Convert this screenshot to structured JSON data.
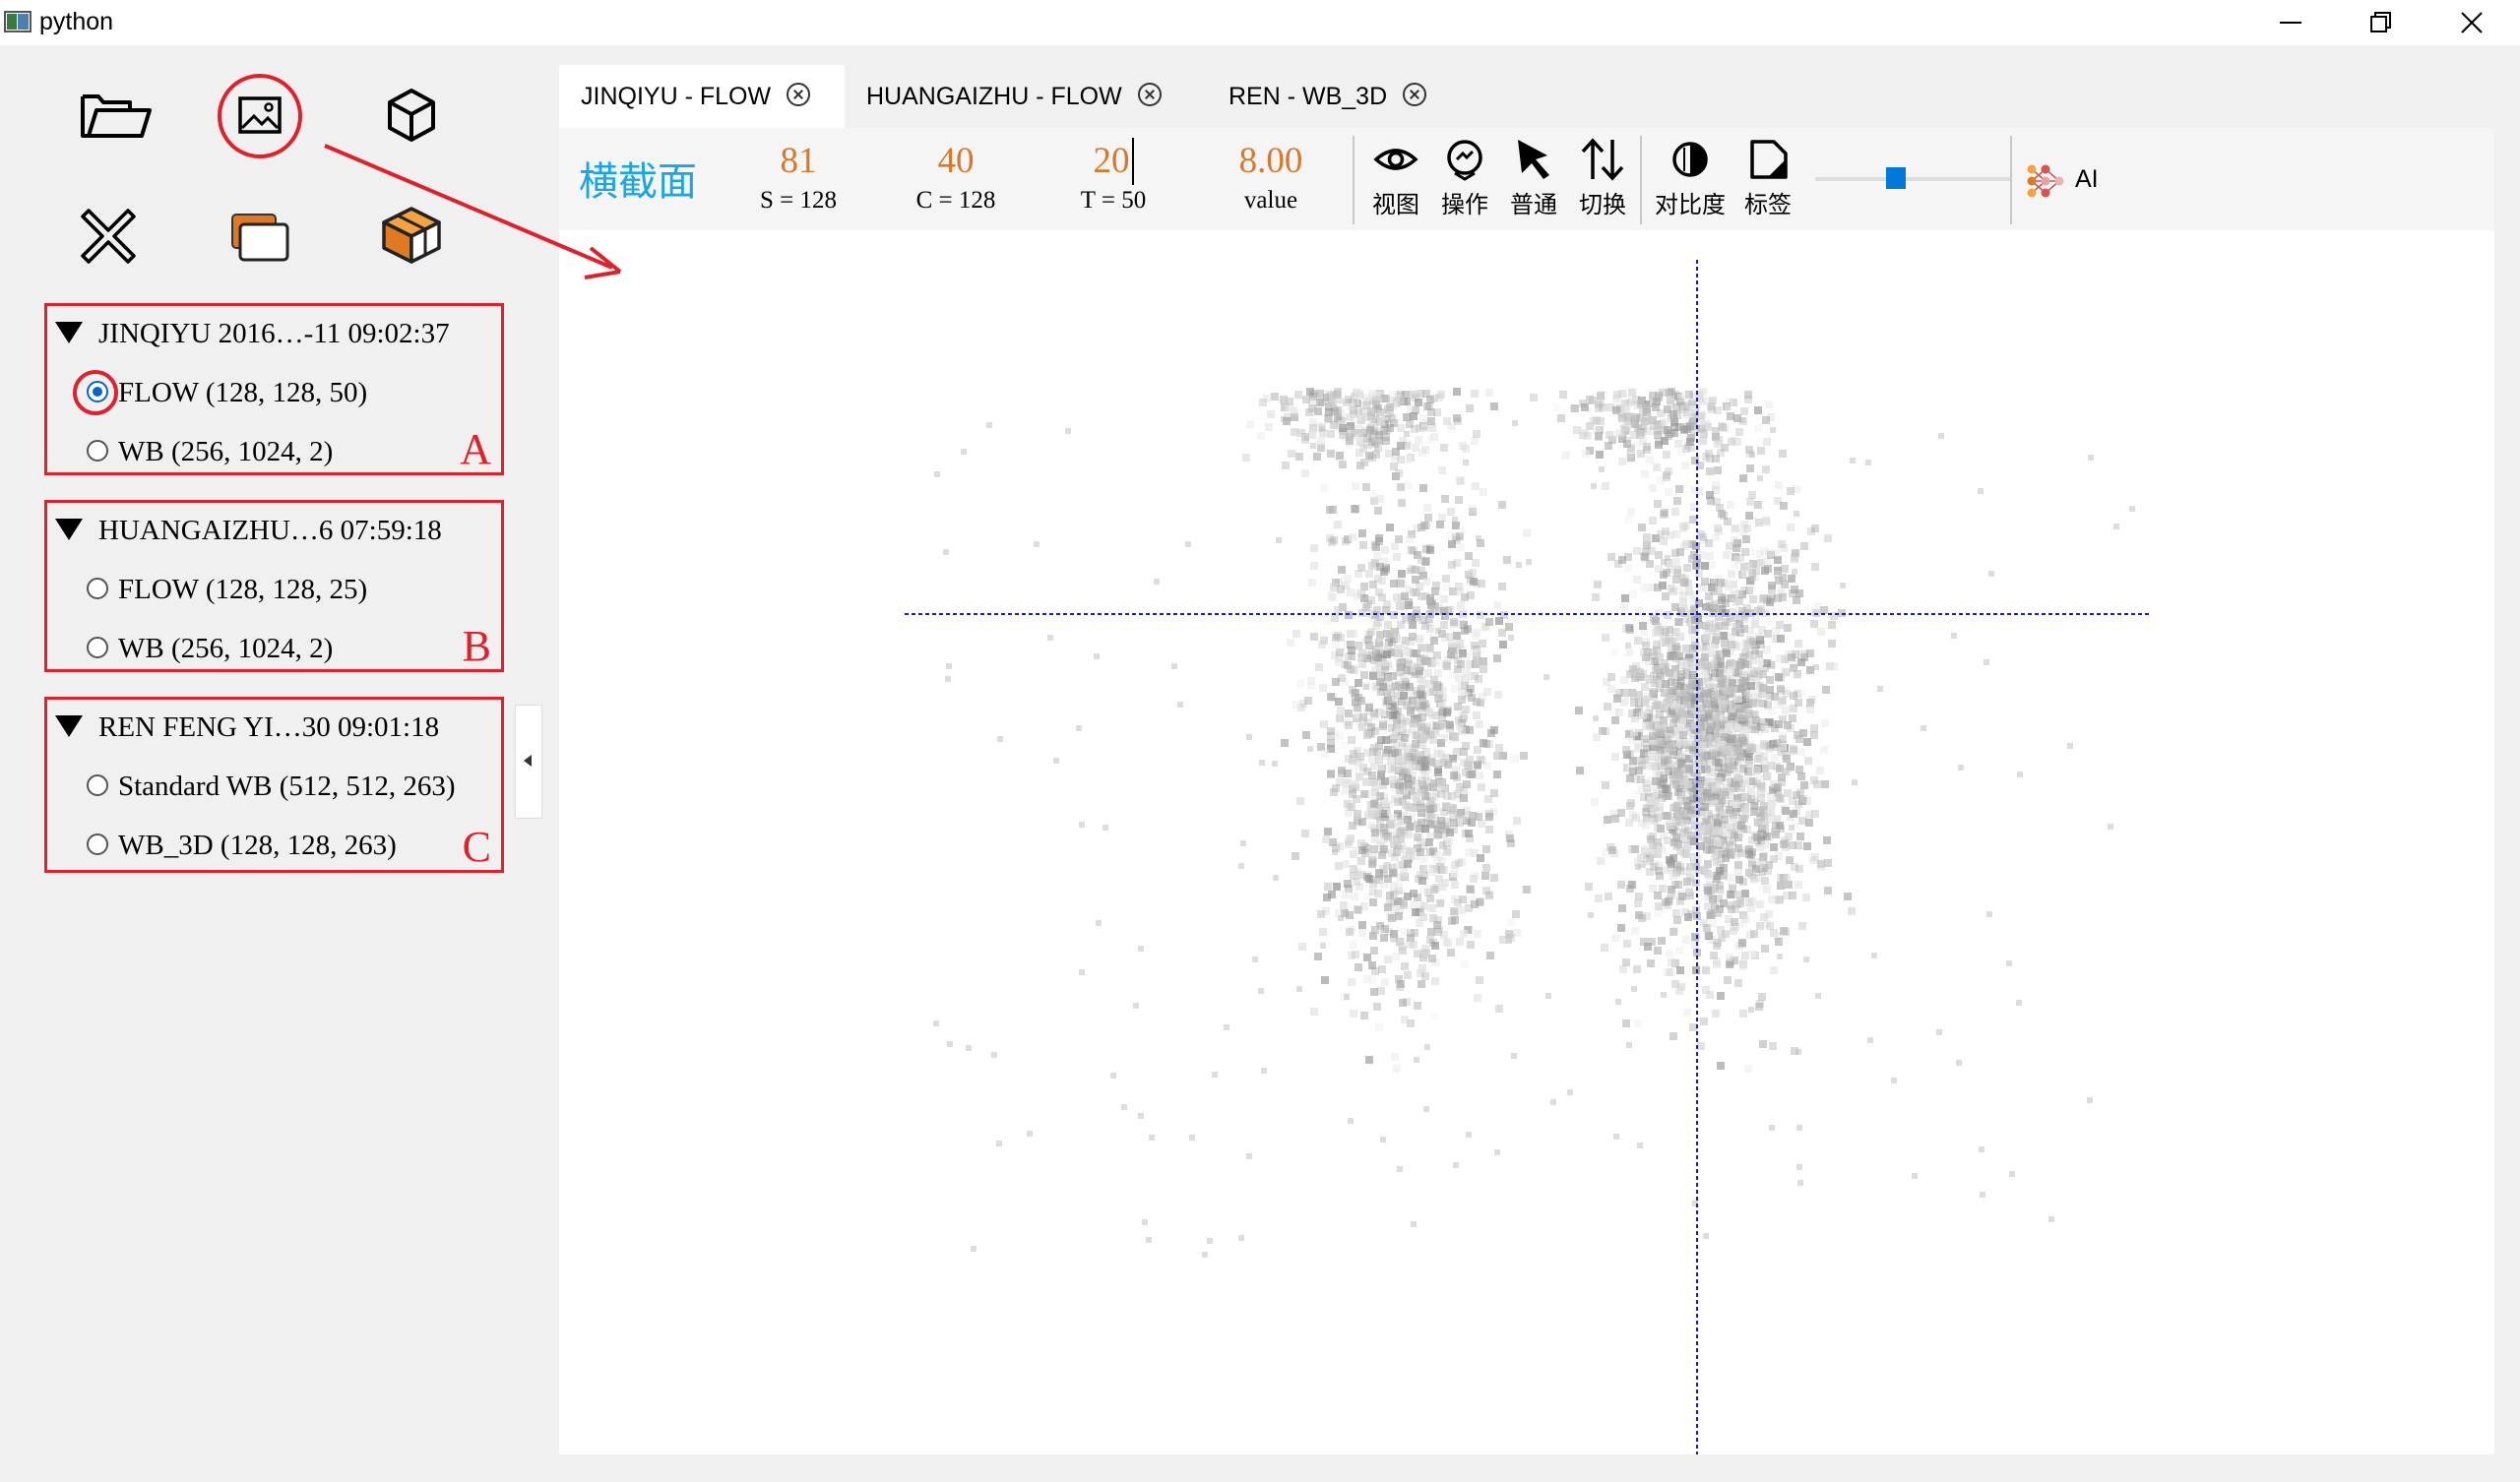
{
  "window": {
    "title": "python"
  },
  "left_tools": {
    "open_folder": "folder-open-icon",
    "image_view": "image-icon",
    "cube_3d": "cube-icon",
    "close": "close-x-icon",
    "layers": "layers-icon",
    "cube_colored": "colored-cube-icon"
  },
  "datasets": [
    {
      "header": "JINQIYU 2016…-11 09:02:37",
      "letter": "A",
      "options": [
        {
          "label": "FLOW (128, 128, 50)",
          "checked": true
        },
        {
          "label": "WB (256, 1024, 2)",
          "checked": false
        }
      ]
    },
    {
      "header": "HUANGAIZHU…6 07:59:18",
      "letter": "B",
      "options": [
        {
          "label": "FLOW (128, 128, 25)",
          "checked": false
        },
        {
          "label": "WB (256, 1024, 2)",
          "checked": false
        }
      ]
    },
    {
      "header": "REN FENG YI…30 09:01:18",
      "letter": "C",
      "options": [
        {
          "label": "Standard WB (512, 512, 263)",
          "checked": false
        },
        {
          "label": "WB_3D (128, 128, 263)",
          "checked": false
        }
      ]
    }
  ],
  "tabs": [
    {
      "label": "JINQIYU - FLOW",
      "active": true
    },
    {
      "label": "HUANGAIZHU - FLOW",
      "active": false
    },
    {
      "label": "REN - WB_3D",
      "active": false
    }
  ],
  "toolbar": {
    "section": "横截面",
    "params": [
      {
        "value": "81",
        "label": "S = 128"
      },
      {
        "value": "40",
        "label": "C = 128"
      },
      {
        "value": "20",
        "label": "T = 50"
      },
      {
        "value": "8.00",
        "label": "value"
      }
    ],
    "buttons": [
      {
        "label": "视图",
        "icon": "eye-icon"
      },
      {
        "label": "操作",
        "icon": "operate-icon"
      },
      {
        "label": "普通",
        "icon": "cursor-arrow-icon"
      },
      {
        "label": "切换",
        "icon": "swap-vertical-icon"
      },
      {
        "label": "对比度",
        "icon": "contrast-icon"
      },
      {
        "label": "标签",
        "icon": "label-tag-icon"
      }
    ],
    "slider_level": 0.4,
    "ai_label": "AI"
  },
  "colors": {
    "accent_blue": "#0078d7",
    "value_orange": "#d9782a",
    "section_cyan": "#1aa6e0",
    "annotation_red": "#e0202a",
    "crosshair": "#1a1acc"
  }
}
